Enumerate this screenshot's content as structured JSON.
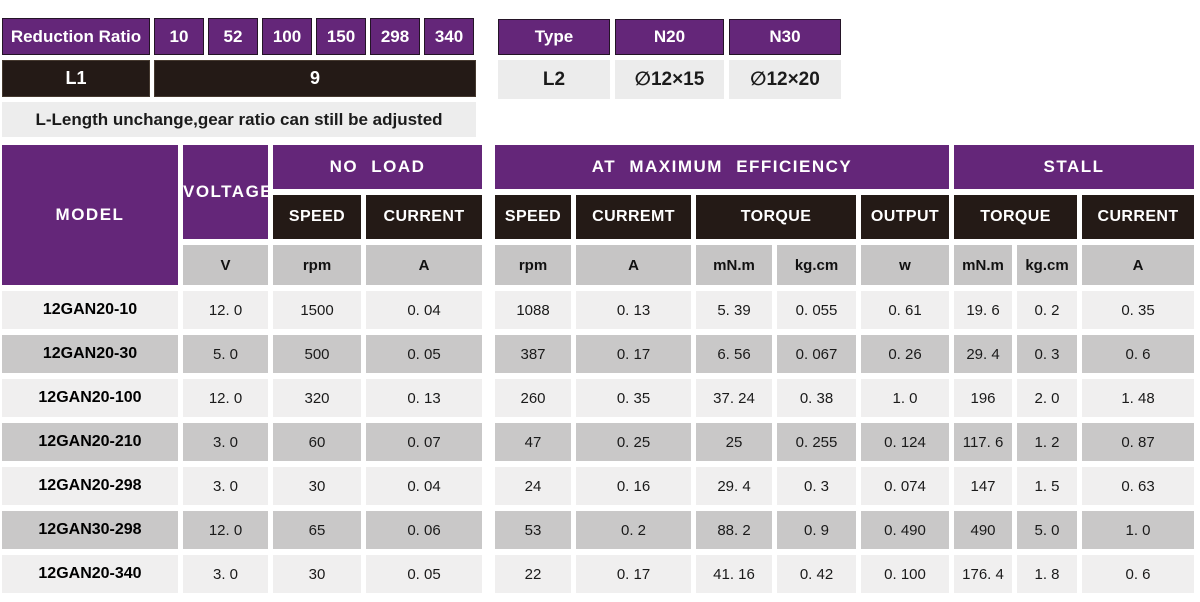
{
  "theme": {
    "purple": "#642679",
    "dark_cell": "#241a16",
    "light_row": "#f0efef",
    "dark_row": "#c9c8c8",
    "units_row": "#c6c5c5",
    "note_bg": "#ededed"
  },
  "reduction_table": {
    "header_label": "Reduction Ratio",
    "ratios": [
      "10",
      "52",
      "100",
      "150",
      "298",
      "340"
    ],
    "l1_label": "L1",
    "l1_value": "9",
    "note": "L-Length unchange,gear ratio can still be adjusted"
  },
  "type_table": {
    "header_label": "Type",
    "types": [
      "N20",
      "N30"
    ],
    "l2_label": "L2",
    "l2_values": [
      "∅12×15",
      "∅12×20"
    ]
  },
  "spec_table": {
    "model_header": "MODEL",
    "voltage_header": "VOLTAGE",
    "groups": {
      "no_load": "NO LOAD",
      "max_eff": "AT MAXIMUM EFFICIENCY",
      "stall": "STALL"
    },
    "subheaders": {
      "nl_speed": "SPEED",
      "nl_current": "CURRENT",
      "me_speed": "SPEED",
      "me_current": "CURREMT",
      "me_torque": "TORQUE",
      "output": "OUTPUT",
      "stall_torque": "TORQUE",
      "stall_current": "CURRENT"
    },
    "units": [
      "V",
      "rpm",
      "A",
      "rpm",
      "A",
      "mN.m",
      "kg.cm",
      "w",
      "mN.m",
      "kg.cm",
      "A"
    ],
    "rows": [
      {
        "model": "12GAN20-10",
        "values": [
          "12. 0",
          "1500",
          "0. 04",
          "1088",
          "0. 13",
          "5. 39",
          "0. 055",
          "0. 61",
          "19. 6",
          "0. 2",
          "0. 35"
        ]
      },
      {
        "model": "12GAN20-30",
        "values": [
          "5. 0",
          "500",
          "0. 05",
          "387",
          "0. 17",
          "6. 56",
          "0. 067",
          "0. 26",
          "29. 4",
          "0. 3",
          "0. 6"
        ]
      },
      {
        "model": "12GAN20-100",
        "values": [
          "12. 0",
          "320",
          "0. 13",
          "260",
          "0. 35",
          "37. 24",
          "0. 38",
          "1. 0",
          "196",
          "2. 0",
          "1. 48"
        ]
      },
      {
        "model": "12GAN20-210",
        "values": [
          "3. 0",
          "60",
          "0. 07",
          "47",
          "0. 25",
          "25",
          "0. 255",
          "0. 124",
          "117. 6",
          "1. 2",
          "0. 87"
        ]
      },
      {
        "model": "12GAN20-298",
        "values": [
          "3. 0",
          "30",
          "0. 04",
          "24",
          "0. 16",
          "29. 4",
          "0. 3",
          "0. 074",
          "147",
          "1. 5",
          "0. 63"
        ]
      },
      {
        "model": "12GAN30-298",
        "values": [
          "12. 0",
          "65",
          "0. 06",
          "53",
          "0. 2",
          "88. 2",
          "0. 9",
          "0. 490",
          "490",
          "5. 0",
          "1. 0"
        ]
      },
      {
        "model": "12GAN20-340",
        "values": [
          "3. 0",
          "30",
          "0. 05",
          "22",
          "0. 17",
          "41. 16",
          "0. 42",
          "0. 100",
          "176. 4",
          "1. 8",
          "0. 6"
        ]
      }
    ]
  }
}
